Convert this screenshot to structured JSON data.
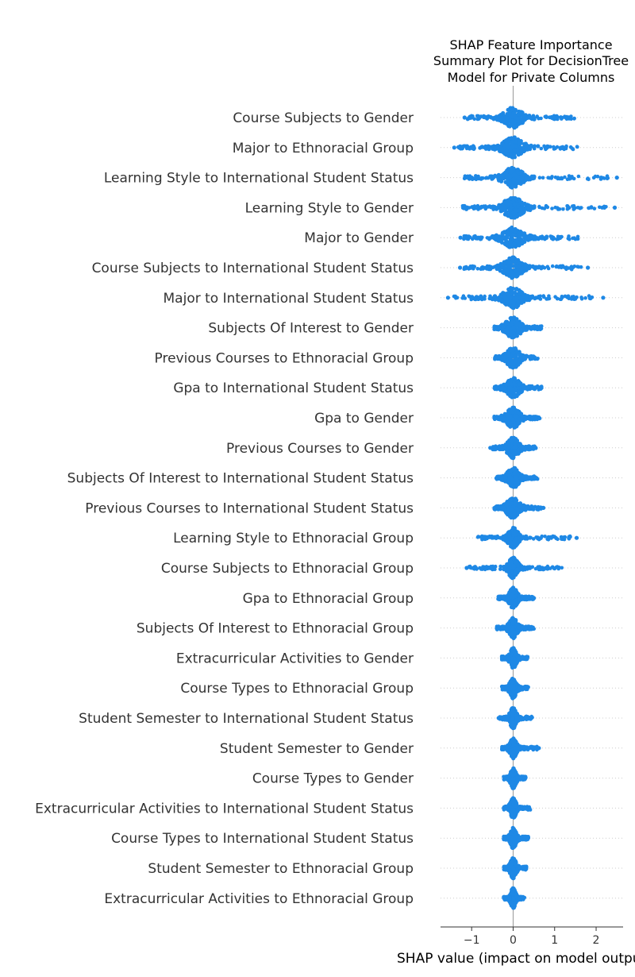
{
  "chart_data": {
    "type": "scatter",
    "title_lines": [
      "SHAP Feature Importance",
      "Summary Plot for DecisionTree",
      "Model for Private Columns"
    ],
    "xlabel": "SHAP value (impact on model output)",
    "xlim": [
      -1.75,
      2.65
    ],
    "xticks": [
      -1,
      0,
      1,
      2
    ],
    "xtick_labels": [
      "−1",
      "0",
      "1",
      "2"
    ],
    "grid": false,
    "point_color": "#1e88e5",
    "features": [
      {
        "name": "Course Subjects to Gender",
        "min": -1.2,
        "max": 1.75,
        "core": 0.55,
        "outliers": [
          -1.17
        ]
      },
      {
        "name": "Major to Ethnoracial Group",
        "min": -1.45,
        "max": 1.7,
        "core": 0.6,
        "outliers": [
          -1.42,
          -1.3
        ]
      },
      {
        "name": "Learning Style to International Student Status",
        "min": -1.3,
        "max": 2.5,
        "core": 0.55,
        "outliers": [
          2.12,
          2.5
        ]
      },
      {
        "name": "Learning Style to Gender",
        "min": -1.35,
        "max": 2.45,
        "core": 0.6,
        "outliers": [
          2.45
        ]
      },
      {
        "name": "Major to Gender",
        "min": -1.3,
        "max": 1.7,
        "core": 0.6,
        "outliers": [
          -1.27
        ]
      },
      {
        "name": "Course Subjects to International Student Status",
        "min": -1.3,
        "max": 1.8,
        "core": 0.55,
        "outliers": [
          -1.28,
          1.8
        ]
      },
      {
        "name": "Major to International Student Status",
        "min": -1.6,
        "max": 2.2,
        "core": 0.55,
        "outliers": [
          -1.57,
          2.17
        ]
      },
      {
        "name": "Subjects Of Interest to Gender",
        "min": -0.5,
        "max": 0.75,
        "core": 0.45,
        "outliers": []
      },
      {
        "name": "Previous Courses to Ethnoracial Group",
        "min": -0.5,
        "max": 0.65,
        "core": 0.4,
        "outliers": []
      },
      {
        "name": "Gpa to International Student Status",
        "min": -0.5,
        "max": 0.75,
        "core": 0.4,
        "outliers": []
      },
      {
        "name": "Gpa to Gender",
        "min": -0.5,
        "max": 0.7,
        "core": 0.4,
        "outliers": []
      },
      {
        "name": "Previous Courses to Gender",
        "min": -0.55,
        "max": 0.6,
        "core": 0.35,
        "outliers": [
          -0.55
        ]
      },
      {
        "name": "Subjects Of Interest to International Student Status",
        "min": -0.45,
        "max": 0.65,
        "core": 0.35,
        "outliers": []
      },
      {
        "name": "Previous Courses to International Student Status",
        "min": -0.5,
        "max": 0.75,
        "core": 0.4,
        "outliers": [
          0.73
        ]
      },
      {
        "name": "Learning Style to Ethnoracial Group",
        "min": -1.0,
        "max": 1.55,
        "core": 0.3,
        "outliers": [
          1.53
        ]
      },
      {
        "name": "Course Subjects to Ethnoracial Group",
        "min": -1.15,
        "max": 1.3,
        "core": 0.3,
        "outliers": [
          -1.12
        ]
      },
      {
        "name": "Gpa to Ethnoracial Group",
        "min": -0.4,
        "max": 0.55,
        "core": 0.25,
        "outliers": []
      },
      {
        "name": "Subjects Of Interest to Ethnoracial Group",
        "min": -0.45,
        "max": 0.55,
        "core": 0.25,
        "outliers": []
      },
      {
        "name": "Extracurricular Activities to Gender",
        "min": -0.3,
        "max": 0.4,
        "core": 0.2,
        "outliers": []
      },
      {
        "name": "Course Types to Ethnoracial Group",
        "min": -0.3,
        "max": 0.4,
        "core": 0.2,
        "outliers": []
      },
      {
        "name": "Student Semester to International Student Status",
        "min": -0.35,
        "max": 0.5,
        "core": 0.2,
        "outliers": [
          -0.35
        ]
      },
      {
        "name": "Student Semester to Gender",
        "min": -0.3,
        "max": 0.65,
        "core": 0.2,
        "outliers": [
          0.62
        ]
      },
      {
        "name": "Course Types to Gender",
        "min": -0.25,
        "max": 0.35,
        "core": 0.18,
        "outliers": []
      },
      {
        "name": "Extracurricular Activities to International Student Status",
        "min": -0.25,
        "max": 0.45,
        "core": 0.18,
        "outliers": []
      },
      {
        "name": "Course Types to International Student Status",
        "min": -0.25,
        "max": 0.4,
        "core": 0.18,
        "outliers": []
      },
      {
        "name": "Student Semester to Ethnoracial Group",
        "min": -0.25,
        "max": 0.35,
        "core": 0.18,
        "outliers": []
      },
      {
        "name": "Extracurricular Activities to Ethnoracial Group",
        "min": -0.25,
        "max": 0.3,
        "core": 0.15,
        "outliers": []
      }
    ]
  }
}
